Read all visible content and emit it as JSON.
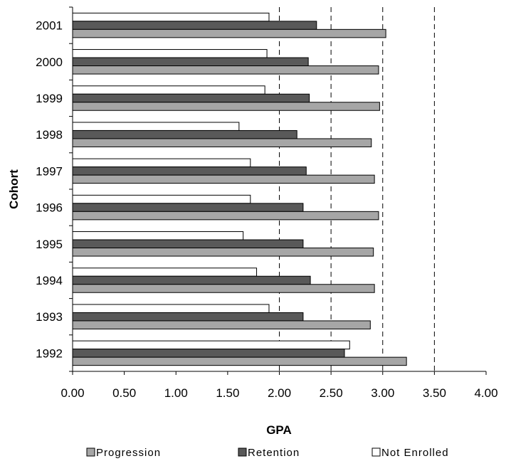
{
  "chart_data": {
    "type": "bar",
    "orientation": "horizontal",
    "title": "",
    "xlabel": "GPA",
    "ylabel": "Cohort",
    "xlim": [
      0,
      4
    ],
    "x_ticks": [
      "0.00",
      "0.50",
      "1.00",
      "1.50",
      "2.00",
      "2.50",
      "3.00",
      "3.50",
      "4.00"
    ],
    "categories": [
      "1992",
      "1993",
      "1994",
      "1995",
      "1996",
      "1997",
      "1998",
      "1999",
      "2000",
      "2001"
    ],
    "series": [
      {
        "name": "Progression",
        "color": "#a6a6a6",
        "values": [
          3.23,
          2.88,
          2.92,
          2.91,
          2.96,
          2.92,
          2.89,
          2.97,
          2.96,
          3.03
        ]
      },
      {
        "name": "Retention",
        "color": "#595959",
        "values": [
          2.63,
          2.23,
          2.3,
          2.23,
          2.23,
          2.26,
          2.17,
          2.29,
          2.28,
          2.36
        ]
      },
      {
        "name": "Not Enrolled",
        "color": "#ffffff",
        "values": [
          2.68,
          1.9,
          1.78,
          1.65,
          1.72,
          1.72,
          1.61,
          1.86,
          1.88,
          1.9
        ]
      }
    ],
    "gridlines": "dashed vertical at 2.00, 2.50, 3.00, 3.50",
    "legend_position": "bottom"
  }
}
